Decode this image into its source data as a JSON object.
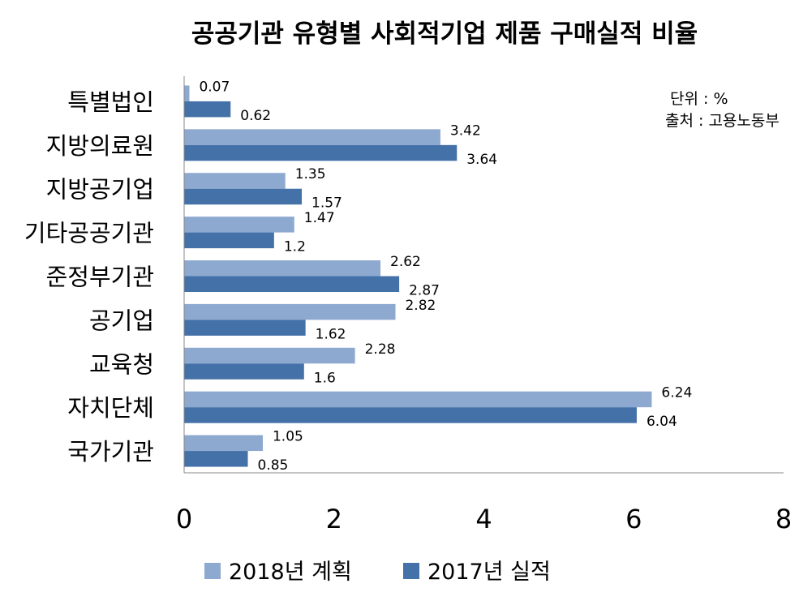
{
  "chart_data": {
    "type": "bar",
    "orientation": "horizontal",
    "title": "공공기관 유형별 사회적기업 제품 구매실적 비율",
    "categories": [
      "특별법인",
      "지방의료원",
      "지방공기업",
      "기타공공기관",
      "준정부기관",
      "공기업",
      "교육청",
      "자치단체",
      "국가기관"
    ],
    "series": [
      {
        "name": "2018년 계획",
        "color": "#8EA9D0",
        "values": [
          0.07,
          3.42,
          1.35,
          1.47,
          2.62,
          2.82,
          2.28,
          6.24,
          1.05
        ],
        "labels": [
          "0.07",
          "3.42",
          "1.35",
          "1.47",
          "2.62",
          "2.82",
          "2.28",
          "6.24",
          "1.05"
        ]
      },
      {
        "name": "2017년 실적",
        "color": "#4471A8",
        "values": [
          0.62,
          3.64,
          1.57,
          1.2,
          2.87,
          1.62,
          1.6,
          6.04,
          0.85
        ],
        "labels": [
          "0.62",
          "3.64",
          "1.57",
          "1.2",
          "2.87",
          "1.62",
          "1.6",
          "6.04",
          "0.85"
        ]
      }
    ],
    "xlim": [
      0,
      8
    ],
    "xticks": [
      "0",
      "2",
      "4",
      "6",
      "8"
    ],
    "grid": false,
    "legend_position": "bottom",
    "annotations": [
      "단위 : %",
      "출처 : 고용노동부"
    ]
  }
}
